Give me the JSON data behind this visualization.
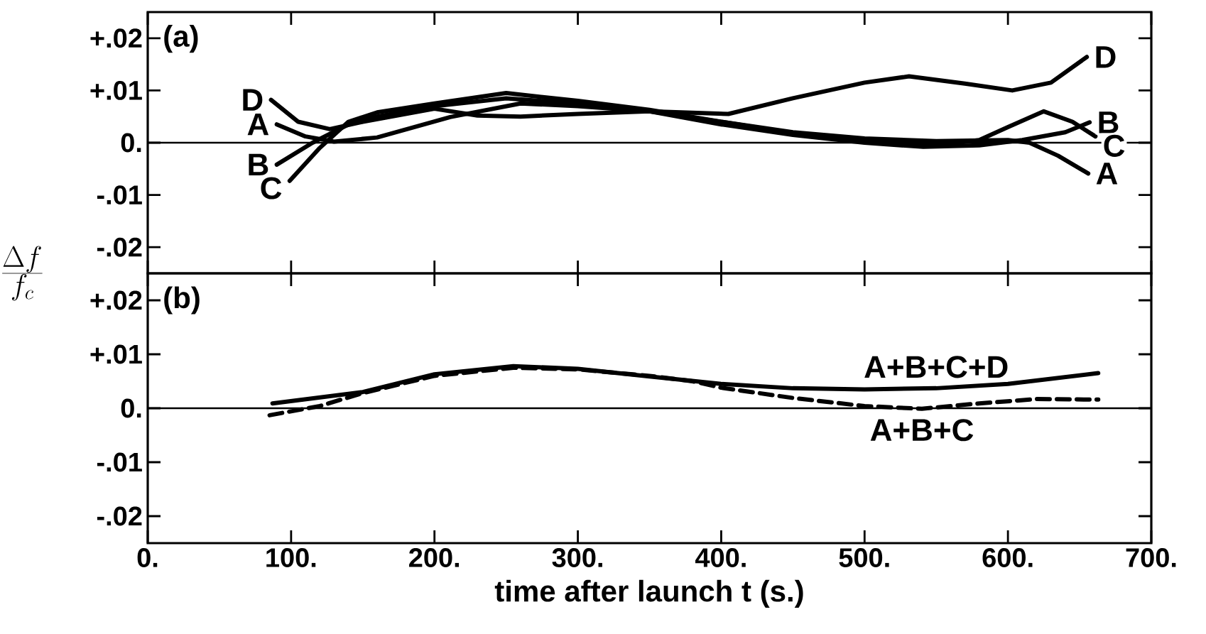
{
  "chart_data": [
    {
      "type": "line",
      "title": "(a)",
      "ylabel": "\\frac{\\Delta f}{f_c}",
      "xlim": [
        0,
        700
      ],
      "ylim": [
        -0.025,
        0.025
      ],
      "legend": "right",
      "xticks": [
        {
          "value": 0,
          "label": null
        },
        {
          "value": 100,
          "label": null
        },
        {
          "value": 200,
          "label": null
        },
        {
          "value": 300,
          "label": null
        },
        {
          "value": 400,
          "label": null
        },
        {
          "value": 500,
          "label": null
        },
        {
          "value": 600,
          "label": null
        },
        {
          "value": 700,
          "label": null
        }
      ],
      "yticks": [
        {
          "value": 0.02,
          "label": "+.02"
        },
        {
          "value": 0.01,
          "label": "+.01"
        },
        {
          "value": 0,
          "label": "0."
        },
        {
          "value": -0.01,
          "label": "-.01"
        },
        {
          "value": -0.02,
          "label": "-.02"
        }
      ],
      "tick_labels": "y",
      "ref_lines": [
        {
          "axis": "y",
          "value": 0,
          "color": "#000000"
        }
      ],
      "series": [
        {
          "name": "A",
          "color": "#000000",
          "x": [
            90,
            110,
            130,
            160,
            211,
            260,
            300,
            350,
            400,
            450,
            500,
            550,
            600,
            615,
            635,
            656
          ],
          "values": [
            0.0035,
            0.0012,
            0.0002,
            0.001,
            0.0049,
            0.0075,
            0.007,
            0.006,
            0.004,
            0.002,
            0.0008,
            0.0003,
            0.0005,
            0.0,
            -0.0025,
            -0.0059
          ]
        },
        {
          "name": "B",
          "color": "#000000",
          "x": [
            90,
            115,
            140,
            160,
            200,
            250,
            300,
            350,
            400,
            450,
            500,
            541,
            580,
            610,
            640,
            657
          ],
          "values": [
            -0.0042,
            0.0,
            0.0035,
            0.005,
            0.007,
            0.0085,
            0.0075,
            0.006,
            0.0035,
            0.0015,
            0.0,
            -0.0008,
            -0.0005,
            0.0005,
            0.002,
            0.0039
          ]
        },
        {
          "name": "C",
          "color": "#000000",
          "x": [
            99,
            120,
            140,
            160,
            200,
            250,
            300,
            350,
            400,
            450,
            500,
            550,
            580,
            600,
            625,
            645,
            661
          ],
          "values": [
            -0.0073,
            -0.001,
            0.004,
            0.0058,
            0.0075,
            0.0095,
            0.008,
            0.0063,
            0.004,
            0.0018,
            0.0005,
            -0.0005,
            0.0005,
            0.003,
            0.006,
            0.004,
            0.0012
          ]
        },
        {
          "name": "D",
          "color": "#000000",
          "x": [
            86,
            105,
            127,
            150,
            200,
            230,
            260,
            300,
            350,
            405,
            450,
            500,
            531,
            570,
            603,
            630,
            655
          ],
          "values": [
            0.0082,
            0.004,
            0.0026,
            0.004,
            0.0065,
            0.0052,
            0.005,
            0.0055,
            0.006,
            0.0055,
            0.0085,
            0.0115,
            0.0127,
            0.0113,
            0.01,
            0.0115,
            0.0164
          ]
        }
      ]
    },
    {
      "type": "line",
      "title": "(b)",
      "xlabel": "time after launch t (s.)",
      "xlim": [
        0,
        700
      ],
      "ylim": [
        -0.025,
        0.025
      ],
      "xticks": [
        {
          "value": 0,
          "label": "0."
        },
        {
          "value": 100,
          "label": "100."
        },
        {
          "value": 200,
          "label": "200."
        },
        {
          "value": 300,
          "label": "300."
        },
        {
          "value": 400,
          "label": "400."
        },
        {
          "value": 500,
          "label": "500."
        },
        {
          "value": 600,
          "label": "600."
        },
        {
          "value": 700,
          "label": "700."
        }
      ],
      "yticks": [
        {
          "value": 0.02,
          "label": "+.02"
        },
        {
          "value": 0.01,
          "label": "+.01"
        },
        {
          "value": 0,
          "label": "0."
        },
        {
          "value": -0.01,
          "label": "-.01"
        },
        {
          "value": -0.02,
          "label": "-.02"
        }
      ],
      "ref_lines": [
        {
          "axis": "y",
          "value": 0,
          "color": "#000000"
        }
      ],
      "series": [
        {
          "name": "A+B+C+D",
          "color": "#000000",
          "line_style": "solid",
          "x": [
            87,
            150,
            200,
            255,
            300,
            350,
            400,
            450,
            500,
            550,
            600,
            663
          ],
          "values": [
            0.0009,
            0.003,
            0.0063,
            0.0078,
            0.0073,
            0.0059,
            0.0045,
            0.0037,
            0.0035,
            0.0037,
            0.0045,
            0.0065
          ]
        },
        {
          "name": "A+B+C",
          "color": "#000000",
          "line_style": "dashed",
          "x": [
            85,
            120,
            150,
            200,
            255,
            300,
            350,
            380,
            400,
            450,
            500,
            540,
            580,
            620,
            663
          ],
          "values": [
            -0.0013,
            0.0004,
            0.0028,
            0.006,
            0.0075,
            0.0072,
            0.006,
            0.005,
            0.0038,
            0.0019,
            0.0004,
            -0.0001,
            0.0009,
            0.0017,
            0.0016
          ]
        }
      ]
    }
  ]
}
